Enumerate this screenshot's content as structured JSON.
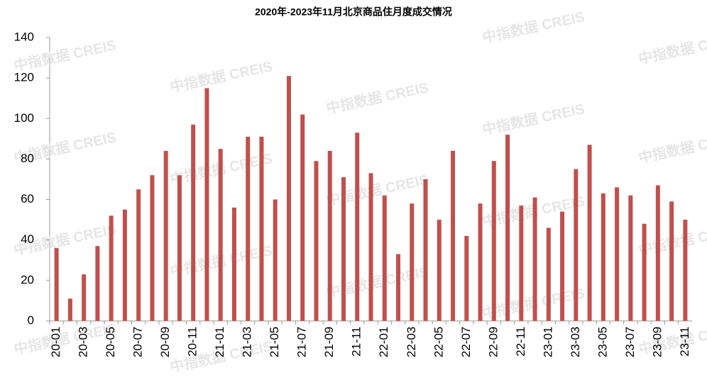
{
  "chart_data": {
    "type": "bar",
    "title": "2020年-2023年11月北京商品住月度成交情况",
    "watermark": "中指数据 CREIS",
    "categories": [
      "20-01",
      null,
      "20-03",
      null,
      "20-05",
      null,
      "20-07",
      null,
      "20-09",
      null,
      "20-11",
      null,
      "21-01",
      null,
      "21-03",
      null,
      "21-05",
      null,
      "21-07",
      null,
      "21-09",
      null,
      "21-11",
      null,
      "22-01",
      null,
      "22-03",
      null,
      "22-05",
      null,
      "22-07",
      null,
      "22-09",
      null,
      "22-11",
      null,
      "23-01",
      null,
      "23-03",
      null,
      "23-05",
      null,
      "23-07",
      null,
      "23-09",
      null,
      "23-11"
    ],
    "values": [
      36,
      11,
      23,
      37,
      52,
      55,
      65,
      72,
      84,
      72,
      97,
      115,
      85,
      56,
      91,
      91,
      60,
      121,
      102,
      79,
      84,
      71,
      93,
      73,
      62,
      33,
      58,
      70,
      50,
      84,
      42,
      58,
      79,
      92,
      57,
      61,
      46,
      54,
      75,
      87,
      63,
      66,
      62,
      48,
      67,
      59,
      50
    ],
    "color": "#c0504d",
    "ylim": [
      0,
      140
    ],
    "yticks": [
      0,
      20,
      40,
      60,
      80,
      100,
      120,
      140
    ],
    "grid": false
  }
}
